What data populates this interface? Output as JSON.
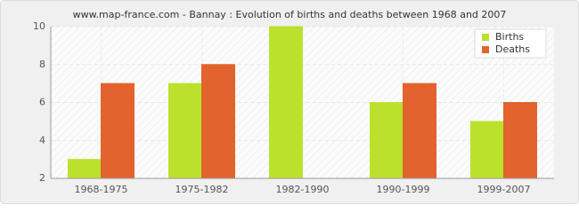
{
  "chart_data": {
    "type": "bar",
    "title": "www.map-france.com - Bannay : Evolution of births and deaths between 1968 and 2007",
    "categories": [
      "1968-1975",
      "1975-1982",
      "1982-1990",
      "1990-1999",
      "1999-2007"
    ],
    "series": [
      {
        "name": "Births",
        "color": "#bbe12d",
        "values": [
          3,
          7,
          10,
          6,
          5
        ]
      },
      {
        "name": "Deaths",
        "color": "#e2632e",
        "values": [
          7,
          8,
          2,
          7,
          6
        ]
      }
    ],
    "ylim": [
      2,
      10
    ],
    "yticks": [
      2,
      4,
      6,
      8,
      10
    ],
    "grid": true,
    "legend": "top-right"
  }
}
